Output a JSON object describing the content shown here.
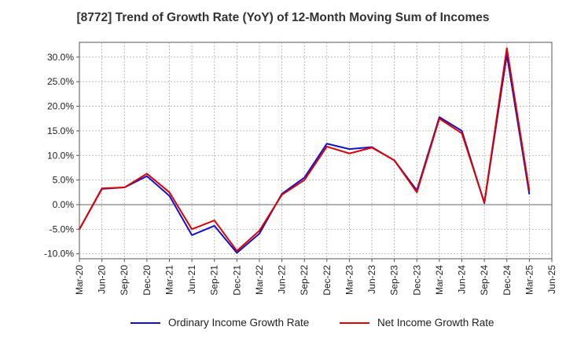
{
  "chart_data": {
    "type": "line",
    "title": "[8772]  Trend of Growth Rate (YoY) of 12-Month Moving Sum of Incomes",
    "xlabel": "",
    "ylabel": "",
    "y_tick_labels": [
      "30.0%",
      "25.0%",
      "20.0%",
      "15.0%",
      "10.0%",
      "5.0%",
      "0.0%",
      "-5.0%",
      "-10.0%"
    ],
    "y_ticks": [
      30,
      25,
      20,
      15,
      10,
      5,
      0,
      -5,
      -10
    ],
    "ylim": [
      -11,
      33
    ],
    "grid": true,
    "legend_position": "bottom",
    "categories": [
      "Mar-20",
      "Jun-20",
      "Sep-20",
      "Dec-20",
      "Mar-21",
      "Jun-21",
      "Sep-21",
      "Dec-21",
      "Mar-22",
      "Jun-22",
      "Sep-22",
      "Dec-22",
      "Mar-23",
      "Jun-23",
      "Sep-23",
      "Dec-23",
      "Mar-24",
      "Jun-24",
      "Sep-24",
      "Dec-24",
      "Mar-25",
      "Jun-25"
    ],
    "series": [
      {
        "name": "Ordinary Income Growth Rate",
        "color": "#1010d0",
        "values": [
          -5.0,
          3.2,
          3.5,
          5.8,
          1.8,
          -6.2,
          -4.3,
          -9.8,
          -5.9,
          2.2,
          5.5,
          12.4,
          11.3,
          11.7,
          9.0,
          2.9,
          17.8,
          15.0,
          0.3,
          30.5,
          2.1,
          null
        ]
      },
      {
        "name": "Net Income Growth Rate",
        "color": "#e00000",
        "values": [
          -5.0,
          3.3,
          3.5,
          6.3,
          2.5,
          -5.0,
          -3.2,
          -9.4,
          -5.3,
          2.0,
          5.0,
          11.8,
          10.4,
          11.6,
          9.0,
          2.5,
          17.5,
          14.5,
          0.4,
          31.8,
          2.8,
          null
        ]
      }
    ]
  }
}
